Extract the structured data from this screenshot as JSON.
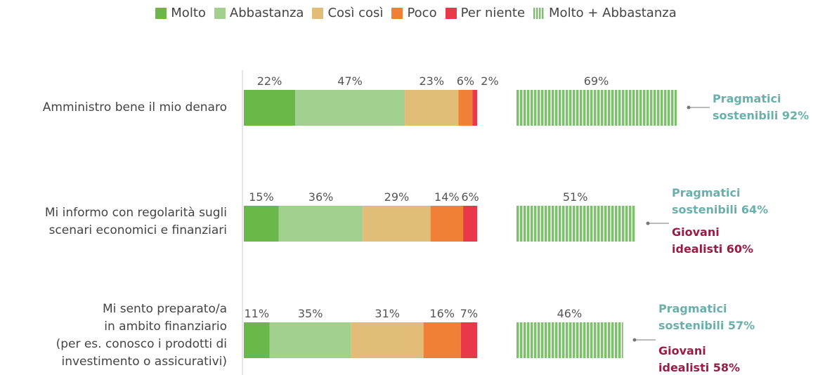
{
  "chart_data": {
    "type": "stacked_bar_h",
    "categories": [
      "Amministro bene il mio denaro",
      "Mi informo con regolarità sugli\nscenari economici e finanziari",
      "Mi sento preparato/a\nin ambito finanziario\n(per es. conosco i prodotti di\ninvestimento o assicurativi)"
    ],
    "series": [
      {
        "name": "Molto",
        "color": "#6ab84a",
        "values": [
          22,
          15,
          11
        ],
        "value_labels": [
          "22%",
          "15%",
          "11%"
        ]
      },
      {
        "name": "Abbastanza",
        "color": "#a2d18f",
        "values": [
          47,
          36,
          35
        ],
        "value_labels": [
          "47%",
          "36%",
          "35%"
        ]
      },
      {
        "name": "Così così",
        "color": "#e2bd78",
        "values": [
          23,
          29,
          31
        ],
        "value_labels": [
          "23%",
          "29%",
          "31%"
        ]
      },
      {
        "name": "Poco",
        "color": "#f08035",
        "values": [
          6,
          14,
          16
        ],
        "value_labels": [
          "6%",
          "14%",
          "16%"
        ]
      },
      {
        "name": "Per niente",
        "color": "#e8384a",
        "values": [
          2,
          6,
          7
        ],
        "value_labels": [
          "2%",
          "6%",
          "7%"
        ]
      }
    ],
    "total_series": {
      "name": "Molto + Abbastanza",
      "color": "#7cc26a",
      "values": [
        69,
        51,
        46
      ],
      "value_labels": [
        "69%",
        "51%",
        "46%"
      ]
    },
    "annotations": [
      [
        {
          "text": "Pragmatici\nsostenibili 92%",
          "color": "#6aafab"
        }
      ],
      [
        {
          "text": "Pragmatici\nsostenibili 64%",
          "color": "#6aafab"
        },
        {
          "text": "Giovani\nidealisti 60%",
          "color": "#9b1b45"
        }
      ],
      [
        {
          "text": "Pragmatici\nsostenibili 57%",
          "color": "#6aafab"
        },
        {
          "text": "Giovani\nidealisti 58%",
          "color": "#9b1b45"
        }
      ]
    ]
  }
}
